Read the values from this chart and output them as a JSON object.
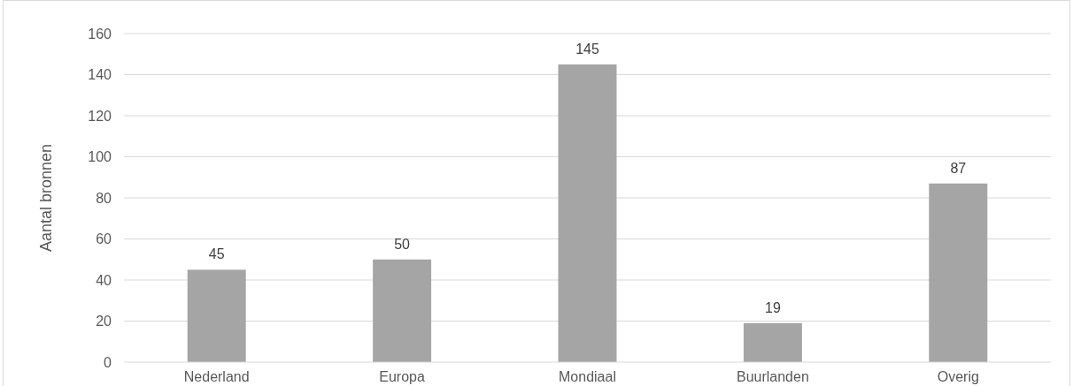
{
  "chart_data": {
    "type": "bar",
    "ylabel": "Aantal bronnen",
    "categories": [
      "Nederland",
      "Europa",
      "Mondiaal",
      "Buurlanden",
      "Overig"
    ],
    "values": [
      45,
      50,
      145,
      19,
      87
    ],
    "color": "#a5a5a5",
    "ylim": [
      0,
      160
    ],
    "yticks": [
      0,
      20,
      40,
      60,
      80,
      100,
      120,
      140,
      160
    ],
    "grid": "y",
    "data_labels": true
  }
}
